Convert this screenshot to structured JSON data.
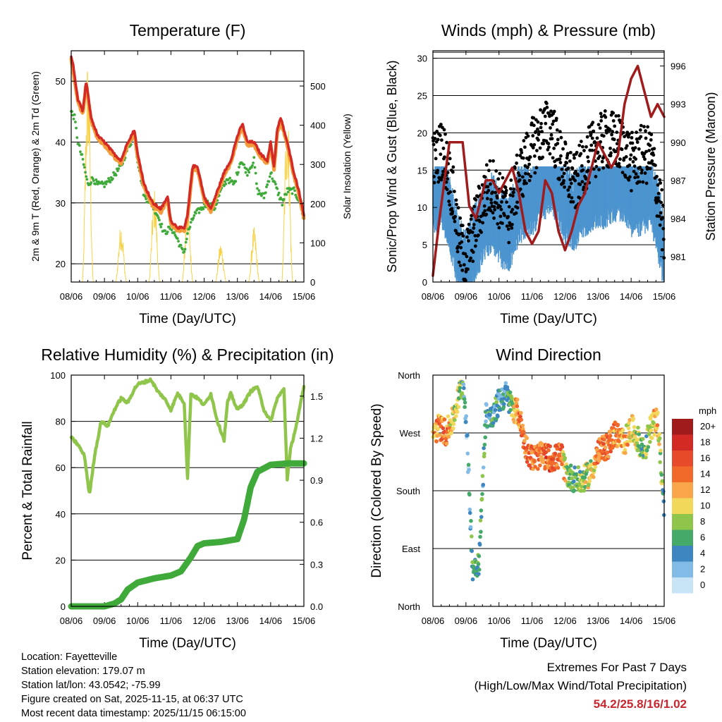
{
  "chart_data": [
    {
      "type": "line",
      "title": "Temperature (F)",
      "xlabel": "Time (Day/UTC)",
      "ylabel": "2m & 9m T (Red, Orange) & 2m Td (Green)",
      "ylabel_right": "Solar Insolation (Yellow)",
      "x_ticks": [
        "08/06",
        "09/06",
        "10/06",
        "11/06",
        "12/06",
        "13/06",
        "14/06",
        "15/06"
      ],
      "y_ticks": [
        20,
        30,
        40,
        50
      ],
      "y_ticks_right": [
        0,
        100,
        200,
        300,
        400,
        500
      ],
      "ylim": [
        17,
        55
      ],
      "ylim_right": [
        0,
        590
      ],
      "grid": "horizontal",
      "colors": {
        "t2m": "#d42a26",
        "t9m": "#f39a3b",
        "td": "#3faa3a",
        "solar": "#f7d248"
      },
      "series": [
        {
          "name": "2m T",
          "x": [
            0,
            0.05,
            0.2,
            0.35,
            0.45,
            0.6,
            0.8,
            1.0,
            1.3,
            1.5,
            1.7,
            1.9,
            2.0,
            2.2,
            2.45,
            2.7,
            2.9,
            3.0,
            3.2,
            3.4,
            3.5,
            3.65,
            3.8,
            4.0,
            4.2,
            4.4,
            4.6,
            4.8,
            5.0,
            5.15,
            5.3,
            5.5,
            5.7,
            5.9,
            6.0,
            6.1,
            6.2,
            6.3,
            6.5,
            6.7,
            6.85,
            7.0
          ],
          "y": [
            54,
            53,
            47,
            45,
            50,
            44,
            41,
            40,
            38,
            37,
            40,
            42,
            38,
            33,
            30,
            29,
            31,
            27,
            26,
            25.8,
            28,
            36,
            36,
            31,
            29,
            32,
            35,
            37,
            41,
            43,
            40,
            40,
            38,
            37,
            40,
            36,
            42,
            44,
            40,
            35,
            32,
            28
          ]
        },
        {
          "name": "9m T",
          "x": [
            0,
            0.2,
            0.35,
            0.45,
            0.6,
            0.8,
            1.0,
            1.3,
            1.5,
            1.7,
            1.9,
            2.0,
            2.2,
            2.45,
            2.7,
            2.9,
            3.0,
            3.2,
            3.4,
            3.5,
            3.65,
            3.8,
            4.0,
            4.2,
            4.4,
            4.6,
            4.8,
            5.0,
            5.15,
            5.3,
            5.5,
            5.7,
            5.9,
            6.0,
            6.1,
            6.2,
            6.3,
            6.5,
            6.7,
            6.85,
            7.0
          ],
          "y": [
            53.6,
            46.6,
            44.6,
            49.5,
            43.5,
            40.5,
            39.5,
            37.5,
            36.5,
            39.5,
            41.5,
            37.5,
            32.5,
            29.5,
            28.5,
            30.5,
            26.5,
            25.5,
            25.5,
            27.5,
            35.5,
            35.5,
            30.5,
            28.5,
            31.5,
            34.5,
            36.5,
            40.5,
            42.5,
            39.5,
            39.5,
            37.5,
            36.5,
            39.5,
            35.5,
            41.5,
            43.5,
            39.5,
            34.5,
            31.5,
            27.5
          ]
        },
        {
          "name": "2m Td",
          "x": [
            0,
            0.1,
            0.2,
            0.35,
            0.5,
            0.65,
            0.8,
            1.0,
            1.2,
            1.5,
            1.7,
            1.9,
            2.0,
            2.2,
            2.4,
            2.6,
            2.8,
            3.0,
            3.2,
            3.35,
            3.4,
            3.5,
            3.7,
            3.9,
            4.1,
            4.3,
            4.5,
            4.7,
            4.9,
            5.1,
            5.3,
            5.5,
            5.6,
            5.8,
            5.9,
            6.0,
            6.2,
            6.35,
            6.5,
            6.7,
            6.9,
            7.0
          ],
          "y": [
            45,
            44,
            40,
            37,
            33,
            34,
            33,
            33,
            34,
            36,
            39,
            41,
            37,
            31,
            30,
            28,
            25,
            26,
            24,
            22,
            22,
            25,
            28,
            29,
            30,
            29,
            32,
            34,
            33,
            37,
            35,
            37,
            32,
            31,
            33,
            35,
            32,
            30,
            32,
            32,
            30,
            27
          ]
        }
      ],
      "solar_peaks_day_offset": [
        0.5,
        1.5,
        2.5,
        3.5,
        4.5,
        5.5,
        6.5
      ],
      "solar_peaks": [
        580,
        150,
        240,
        200,
        100,
        140,
        470
      ]
    },
    {
      "type": "scatter",
      "title": "Winds (mph) & Pressure (mb)",
      "xlabel": "Time (Day/UTC)",
      "ylabel": "Sonic/Prop Wind & Gust (Blue, Black)",
      "ylabel_right": "Station Pressure (Maroon)",
      "x_ticks": [
        "08/06",
        "09/06",
        "10/06",
        "11/06",
        "12/06",
        "13/06",
        "14/06",
        "15/06"
      ],
      "y_ticks": [
        0,
        5,
        10,
        15,
        20,
        25,
        30
      ],
      "y_ticks_right": [
        981,
        984,
        987,
        990,
        993,
        996
      ],
      "ylim": [
        0,
        31
      ],
      "ylim_right": [
        979,
        997.2
      ],
      "grid": "horizontal",
      "colors": {
        "wind": "#4c94cf",
        "gust": "#000000",
        "pressure": "#a01c1c"
      },
      "wind_mean": {
        "x": [
          0,
          0.3,
          0.6,
          0.8,
          1.0,
          1.3,
          1.6,
          1.8,
          2.0,
          2.3,
          2.6,
          3.0,
          3.3,
          3.6,
          3.8,
          4.0,
          4.3,
          4.6,
          4.9,
          5.2,
          5.5,
          5.8,
          6.0,
          6.3,
          6.6,
          6.9,
          7.0
        ],
        "y": [
          11,
          12,
          7,
          3,
          1.5,
          5,
          8,
          9,
          7,
          6,
          10,
          11,
          13,
          14,
          12,
          10,
          9,
          11,
          12,
          12,
          13,
          13,
          11,
          11,
          12,
          6,
          3
        ]
      },
      "gust_mean": {
        "x": [
          0,
          0.3,
          0.6,
          0.8,
          1.0,
          1.3,
          1.6,
          1.8,
          2.0,
          2.3,
          2.6,
          3.0,
          3.3,
          3.6,
          3.8,
          4.0,
          4.3,
          4.6,
          4.9,
          5.2,
          5.5,
          5.8,
          6.0,
          6.3,
          6.6,
          6.9,
          7.0
        ],
        "y": [
          16,
          18,
          12,
          5,
          3,
          8,
          12,
          13,
          11,
          9,
          14,
          18,
          20,
          21,
          17,
          15,
          13,
          16,
          18,
          19,
          19,
          18,
          16,
          17,
          17,
          10,
          5
        ]
      },
      "pressure": {
        "x": [
          0,
          0.2,
          0.5,
          0.9,
          1.1,
          1.3,
          1.6,
          1.8,
          2.0,
          2.2,
          2.4,
          2.6,
          2.8,
          3.0,
          3.2,
          3.4,
          3.6,
          3.8,
          4.0,
          4.2,
          4.4,
          4.6,
          4.8,
          5.0,
          5.2,
          5.4,
          5.6,
          5.8,
          6.0,
          6.2,
          6.4,
          6.6,
          6.8,
          7.0
        ],
        "y": [
          979.5,
          984,
          990,
          990,
          985,
          984,
          987,
          987,
          986,
          987,
          988,
          986,
          983,
          982,
          983,
          987,
          986,
          983,
          981.5,
          983,
          985,
          986,
          988,
          990,
          989,
          988,
          989,
          993,
          995,
          996,
          994,
          992,
          993,
          992
        ]
      }
    },
    {
      "type": "line",
      "title": "Relative Humidity (%) & Precipitation (in)",
      "xlabel": "Time (Day/UTC)",
      "ylabel": "Percent & Total Rainfall",
      "x_ticks": [
        "08/06",
        "09/06",
        "10/06",
        "11/06",
        "12/06",
        "13/06",
        "14/06",
        "15/06"
      ],
      "y_ticks": [
        0,
        20,
        40,
        60,
        80,
        100
      ],
      "y_ticks_right": [
        "0.0",
        "0.3",
        "0.6",
        "0.9",
        "1.2",
        "1.5"
      ],
      "ylim": [
        0,
        100
      ],
      "ylim_right": [
        0,
        1.65
      ],
      "grid": "horizontal",
      "colors": {
        "rh": "#8fc54b",
        "precip": "#3faa3a"
      },
      "series": [
        {
          "name": "RH",
          "x": [
            0,
            0.2,
            0.4,
            0.55,
            0.7,
            0.9,
            1.1,
            1.3,
            1.5,
            1.7,
            1.9,
            2.0,
            2.2,
            2.4,
            2.6,
            2.8,
            3.0,
            3.2,
            3.4,
            3.5,
            3.6,
            3.8,
            4.0,
            4.2,
            4.4,
            4.6,
            4.7,
            4.8,
            5.0,
            5.2,
            5.4,
            5.6,
            5.8,
            6.0,
            6.2,
            6.4,
            6.5,
            6.6,
            6.8,
            7.0
          ],
          "y": [
            73,
            70,
            65,
            48,
            65,
            80,
            78,
            85,
            90,
            88,
            94,
            96,
            97,
            98,
            93,
            90,
            85,
            92,
            88,
            55,
            92,
            90,
            87,
            92,
            80,
            72,
            88,
            92,
            85,
            88,
            93,
            95,
            85,
            80,
            90,
            94,
            55,
            68,
            80,
            95
          ]
        },
        {
          "name": "Precip (in)",
          "x": [
            0,
            1.0,
            1.3,
            1.5,
            1.7,
            2.0,
            2.5,
            3.0,
            3.3,
            3.6,
            3.8,
            4.0,
            4.5,
            5.0,
            5.2,
            5.4,
            5.6,
            6.0,
            6.5,
            7.0
          ],
          "y": [
            0,
            0,
            0.02,
            0.05,
            0.12,
            0.17,
            0.2,
            0.22,
            0.25,
            0.35,
            0.43,
            0.45,
            0.46,
            0.48,
            0.62,
            0.85,
            0.96,
            1.01,
            1.02,
            1.02
          ]
        }
      ]
    },
    {
      "type": "scatter",
      "title": "Wind Direction",
      "xlabel": "Time (Day/UTC)",
      "ylabel": "Direction (Colored By Speed)",
      "x_ticks": [
        "08/06",
        "09/06",
        "10/06",
        "11/06",
        "12/06",
        "13/06",
        "14/06",
        "15/06"
      ],
      "y_ticks": [
        "North",
        "East",
        "South",
        "West",
        "North"
      ],
      "ylim": [
        0,
        360
      ],
      "grid": "horizontal",
      "colorbar": {
        "unit": "mph",
        "labels": [
          "20+",
          "18",
          "16",
          "14",
          "12",
          "10",
          "8",
          "6",
          "4",
          "2",
          "0"
        ],
        "colors": [
          "#a01c1c",
          "#d42a26",
          "#e64a2a",
          "#f26a2a",
          "#f9a64a",
          "#f2d85a",
          "#8fc54b",
          "#45a96a",
          "#3d86c0",
          "#82bbe6",
          "#c7e5f7"
        ]
      },
      "direction_mean": {
        "x": [
          0,
          0.2,
          0.4,
          0.6,
          0.8,
          0.9,
          1.0,
          1.2,
          1.4,
          1.6,
          1.8,
          2.0,
          2.2,
          2.4,
          2.6,
          2.8,
          3.0,
          3.3,
          3.6,
          3.9,
          4.0,
          4.2,
          4.5,
          4.8,
          5.0,
          5.3,
          5.5,
          5.8,
          6.0,
          6.2,
          6.4,
          6.6,
          6.8,
          7.0
        ],
        "y": [
          270,
          280,
          270,
          290,
          330,
          350,
          300,
          60,
          70,
          300,
          290,
          320,
          330,
          310,
          300,
          250,
          230,
          235,
          230,
          235,
          210,
          200,
          195,
          210,
          240,
          250,
          270,
          255,
          280,
          260,
          240,
          280,
          290,
          150
        ],
        "speed": [
          12,
          13,
          14,
          10,
          8,
          6,
          2,
          6,
          7,
          4,
          6,
          4,
          4,
          8,
          13,
          14,
          14,
          14,
          15,
          14,
          10,
          6,
          8,
          10,
          14,
          14,
          13,
          12,
          10,
          8,
          6,
          10,
          12,
          6
        ]
      }
    }
  ],
  "footer": {
    "location": "Location: Fayetteville",
    "elevation": "Station elevation: 179.07 m",
    "latlon": "Station lat/lon: 43.0542; -75.99",
    "created": "Figure created on Sat, 2025-11-15, at 06:37 UTC",
    "recent": "Most recent data timestamp: 2025/11/15 06:15:00",
    "extremes_title": "Extremes For Past 7 Days",
    "extremes_sub": "(High/Low/Max Wind/Total Precipitation)",
    "extremes_values": "54.2/25.8/16/1.02"
  }
}
